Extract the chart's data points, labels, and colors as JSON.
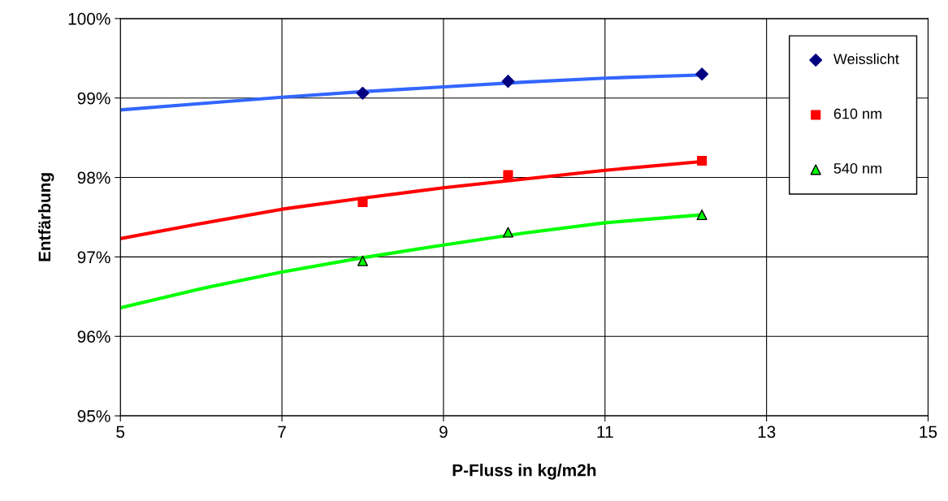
{
  "chart_data": {
    "type": "scatter",
    "xlabel": "P-Fluss in kg/m2h",
    "ylabel": "Entfärbung",
    "xlim": [
      5,
      15
    ],
    "xticks": [
      5,
      7,
      9,
      11,
      13,
      15
    ],
    "ylim": [
      95,
      100
    ],
    "yticks": [
      {
        "value": 95,
        "label": "95%"
      },
      {
        "value": 96,
        "label": "96%"
      },
      {
        "value": 97,
        "label": "97%"
      },
      {
        "value": 98,
        "label": "98%"
      },
      {
        "value": 99,
        "label": "99%"
      },
      {
        "value": 100,
        "label": "100%"
      }
    ],
    "grid": true,
    "legend": "top right",
    "series": [
      {
        "type": "line",
        "color": "#3366ff",
        "marker": "none",
        "x": [
          5,
          6,
          7,
          8,
          9,
          10,
          11,
          12.2
        ],
        "values": [
          98.85,
          98.93,
          99.01,
          99.08,
          99.14,
          99.2,
          99.25,
          99.29
        ]
      },
      {
        "type": "line",
        "color": "#ff0000",
        "marker": "none",
        "x": [
          5,
          6,
          7,
          8,
          9,
          10,
          11,
          12.2
        ],
        "values": [
          97.23,
          97.42,
          97.6,
          97.74,
          97.87,
          97.98,
          98.09,
          98.2
        ]
      },
      {
        "type": "line",
        "color": "#00ff00",
        "marker": "none",
        "x": [
          5,
          6,
          7,
          8,
          9,
          10,
          11,
          12.2
        ],
        "values": [
          96.36,
          96.6,
          96.81,
          96.99,
          97.15,
          97.3,
          97.43,
          97.53
        ]
      },
      {
        "name": "Weisslicht",
        "color": "#000080",
        "marker": "diamond",
        "x": [
          8,
          9.8,
          12.2
        ],
        "values": [
          99.06,
          99.21,
          99.3
        ]
      },
      {
        "name": "610 nm",
        "color": "#ff0000",
        "marker": "square",
        "x": [
          8,
          9.8,
          12.2
        ],
        "values": [
          97.69,
          98.03,
          98.21
        ]
      },
      {
        "name": "540 nm",
        "color": "#00ff00",
        "marker": "triangle",
        "x": [
          8,
          9.8,
          12.2
        ],
        "values": [
          96.95,
          97.31,
          97.53
        ]
      }
    ]
  }
}
